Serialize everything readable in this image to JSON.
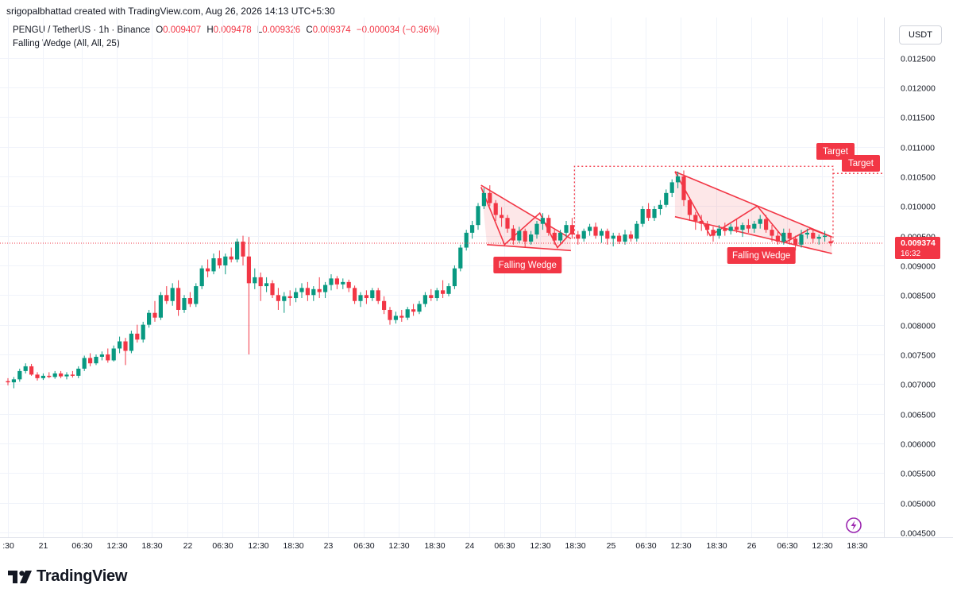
{
  "header": {
    "credit": "srigopalbhattad created with TradingView.com, Aug 26, 2026 14:13 UTC+5:30",
    "symbol": "PENGU / TetherUS · 1h · Binance",
    "o_label": "O",
    "o_value": "0.009407",
    "h_label": "H",
    "h_value": "0.009478",
    "l_label": "L",
    "l_value": "0.009326",
    "c_label": "C",
    "c_value": "0.009374",
    "change": "−0.000034 (−0.36%)",
    "study": "Falling Wedge (All, All, 25)",
    "currency": "USDT"
  },
  "brand": {
    "name": "TradingView",
    "logo_icon": "tradingview-logo-icon"
  },
  "colors": {
    "up": "#089981",
    "down": "#f23645",
    "grid": "#f0f3fa",
    "pattern": "#f23645",
    "pattern_fill": "rgba(242,54,69,0.12)"
  },
  "chart_data": {
    "type": "candlestick",
    "title": "PENGU / TetherUS · 1h · Binance",
    "ylim": [
      0.00442,
      0.01307
    ],
    "y_ticks": [
      "0.012500",
      "0.012000",
      "0.011500",
      "0.011000",
      "0.010500",
      "0.010000",
      "0.009500",
      "0.009000",
      "0.008500",
      "0.008000",
      "0.007500",
      "0.007000",
      "0.006500",
      "0.006000",
      "0.005500",
      "0.005000",
      "0.004500"
    ],
    "x_ticks": [
      ":30",
      "21",
      "06:30",
      "12:30",
      "18:30",
      "22",
      "06:30",
      "12:30",
      "18:30",
      "23",
      "06:30",
      "12:30",
      "18:30",
      "24",
      "06:30",
      "12:30",
      "18:30",
      "25",
      "06:30",
      "12:30",
      "18:30",
      "26",
      "06:30",
      "12:30",
      "18:30"
    ],
    "x_tick_bars": [
      0,
      6,
      12.5,
      18.5,
      24.5,
      30.5,
      36.5,
      42.5,
      48.5,
      54.5,
      60.5,
      66.5,
      72.5,
      78.5,
      84.5,
      90.5,
      96.5,
      102.5,
      108.5,
      114.5,
      120.5,
      126.5,
      132.5,
      138.5,
      144.5
    ],
    "bars": [
      0,
      1,
      2,
      3,
      4,
      5,
      6,
      7,
      8,
      9,
      10,
      11,
      12,
      13,
      14,
      15,
      16,
      17,
      18,
      19,
      20,
      21,
      22,
      23,
      24,
      25,
      26,
      27,
      28,
      29,
      30,
      31,
      32,
      33,
      34,
      35,
      36,
      37,
      38,
      39,
      40,
      41,
      42,
      43,
      44,
      45,
      46,
      47,
      48,
      49,
      50,
      51,
      52,
      53,
      54,
      55,
      56,
      57,
      58,
      59,
      60,
      61,
      62,
      63,
      64,
      65,
      66,
      67,
      68,
      69,
      70,
      71,
      72,
      73,
      74,
      75,
      76,
      77,
      78,
      79,
      80,
      81,
      82,
      83,
      84,
      85,
      86,
      87,
      88,
      89,
      90,
      91,
      92,
      93,
      94,
      95,
      96,
      97,
      98,
      99,
      100,
      101,
      102,
      103,
      104,
      105,
      106,
      107,
      108,
      109,
      110,
      111,
      112,
      113,
      114,
      115,
      116,
      117,
      118,
      119,
      120,
      121,
      122,
      123,
      124,
      125,
      126,
      127,
      128,
      129,
      130,
      131,
      132,
      133,
      134,
      135,
      136,
      137,
      138,
      139,
      140
    ],
    "candles": [
      [
        0.00705,
        0.0071,
        0.00698,
        0.00703
      ],
      [
        0.00703,
        0.00712,
        0.00693,
        0.00708
      ],
      [
        0.00708,
        0.00726,
        0.00704,
        0.00722
      ],
      [
        0.00722,
        0.00735,
        0.00718,
        0.0073
      ],
      [
        0.0073,
        0.00734,
        0.00714,
        0.00716
      ],
      [
        0.00716,
        0.0072,
        0.00706,
        0.0071
      ],
      [
        0.0071,
        0.00718,
        0.00707,
        0.00714
      ],
      [
        0.00714,
        0.0072,
        0.0071,
        0.00712
      ],
      [
        0.00712,
        0.00722,
        0.00709,
        0.00718
      ],
      [
        0.00718,
        0.00722,
        0.0071,
        0.00713
      ],
      [
        0.00713,
        0.0072,
        0.00708,
        0.00716
      ],
      [
        0.00716,
        0.00722,
        0.00711,
        0.00714
      ],
      [
        0.00714,
        0.0073,
        0.0071,
        0.00726
      ],
      [
        0.00726,
        0.00748,
        0.00722,
        0.00744
      ],
      [
        0.00744,
        0.00752,
        0.0073,
        0.00735
      ],
      [
        0.00735,
        0.0075,
        0.00732,
        0.00746
      ],
      [
        0.00746,
        0.00755,
        0.0074,
        0.0075
      ],
      [
        0.0075,
        0.0076,
        0.00736,
        0.0074
      ],
      [
        0.0074,
        0.00765,
        0.00738,
        0.0076
      ],
      [
        0.0076,
        0.0078,
        0.00752,
        0.00772
      ],
      [
        0.00772,
        0.00778,
        0.00732,
        0.00756
      ],
      [
        0.00756,
        0.0079,
        0.00752,
        0.00785
      ],
      [
        0.00785,
        0.008,
        0.0077,
        0.00775
      ],
      [
        0.00775,
        0.00805,
        0.0077,
        0.008
      ],
      [
        0.008,
        0.00825,
        0.00795,
        0.0082
      ],
      [
        0.0082,
        0.0084,
        0.00805,
        0.00812
      ],
      [
        0.00812,
        0.00855,
        0.00808,
        0.0085
      ],
      [
        0.0085,
        0.00865,
        0.00835,
        0.0084
      ],
      [
        0.0084,
        0.0087,
        0.00832,
        0.00862
      ],
      [
        0.00862,
        0.00875,
        0.00815,
        0.00825
      ],
      [
        0.00825,
        0.0085,
        0.0082,
        0.00845
      ],
      [
        0.00845,
        0.00855,
        0.0083,
        0.00835
      ],
      [
        0.00835,
        0.0087,
        0.0083,
        0.00865
      ],
      [
        0.00865,
        0.009,
        0.0086,
        0.00895
      ],
      [
        0.00895,
        0.0091,
        0.0088,
        0.0089
      ],
      [
        0.0089,
        0.0092,
        0.00885,
        0.00912
      ],
      [
        0.00912,
        0.00925,
        0.00895,
        0.009
      ],
      [
        0.009,
        0.0092,
        0.00885,
        0.00915
      ],
      [
        0.00915,
        0.0093,
        0.00905,
        0.0091
      ],
      [
        0.0091,
        0.00945,
        0.00905,
        0.0094
      ],
      [
        0.0094,
        0.0095,
        0.009,
        0.00915
      ],
      [
        0.00915,
        0.00948,
        0.0075,
        0.0087
      ],
      [
        0.0087,
        0.00895,
        0.0086,
        0.0088
      ],
      [
        0.0088,
        0.00888,
        0.0084,
        0.00865
      ],
      [
        0.00865,
        0.0088,
        0.00855,
        0.0087
      ],
      [
        0.0087,
        0.00875,
        0.00845,
        0.0085
      ],
      [
        0.0085,
        0.00862,
        0.00825,
        0.0084
      ],
      [
        0.0084,
        0.00855,
        0.0082,
        0.00848
      ],
      [
        0.00848,
        0.00858,
        0.00832,
        0.00845
      ],
      [
        0.00845,
        0.00862,
        0.00838,
        0.00855
      ],
      [
        0.00855,
        0.0087,
        0.00845,
        0.00862
      ],
      [
        0.00862,
        0.00872,
        0.0084,
        0.0085
      ],
      [
        0.0085,
        0.00865,
        0.0084,
        0.0086
      ],
      [
        0.0086,
        0.0088,
        0.00845,
        0.00855
      ],
      [
        0.00855,
        0.00872,
        0.00845,
        0.00867
      ],
      [
        0.00867,
        0.00885,
        0.00858,
        0.00878
      ],
      [
        0.00878,
        0.00882,
        0.0086,
        0.00868
      ],
      [
        0.00868,
        0.00878,
        0.0086,
        0.00872
      ],
      [
        0.00872,
        0.00876,
        0.00855,
        0.00862
      ],
      [
        0.00862,
        0.00866,
        0.00835,
        0.0084
      ],
      [
        0.0084,
        0.00855,
        0.0083,
        0.0085
      ],
      [
        0.0085,
        0.00858,
        0.00835,
        0.00845
      ],
      [
        0.00845,
        0.00862,
        0.0084,
        0.00858
      ],
      [
        0.00858,
        0.00862,
        0.00835,
        0.0084
      ],
      [
        0.0084,
        0.00848,
        0.00818,
        0.00825
      ],
      [
        0.00825,
        0.0083,
        0.008,
        0.00808
      ],
      [
        0.00808,
        0.00822,
        0.00802,
        0.00815
      ],
      [
        0.00815,
        0.00825,
        0.00805,
        0.00812
      ],
      [
        0.00812,
        0.0083,
        0.00808,
        0.00826
      ],
      [
        0.00826,
        0.00835,
        0.00815,
        0.00822
      ],
      [
        0.00822,
        0.0084,
        0.00818,
        0.00835
      ],
      [
        0.00835,
        0.00855,
        0.0083,
        0.0085
      ],
      [
        0.0085,
        0.0086,
        0.0084,
        0.00845
      ],
      [
        0.00845,
        0.00862,
        0.0084,
        0.00858
      ],
      [
        0.00858,
        0.00875,
        0.00845,
        0.00852
      ],
      [
        0.00852,
        0.0087,
        0.00848,
        0.00865
      ],
      [
        0.00865,
        0.009,
        0.0086,
        0.00895
      ],
      [
        0.00895,
        0.00935,
        0.0089,
        0.0093
      ],
      [
        0.0093,
        0.0096,
        0.00925,
        0.00955
      ],
      [
        0.00955,
        0.00975,
        0.00945,
        0.00968
      ],
      [
        0.00968,
        0.01005,
        0.0096,
        0.01
      ],
      [
        0.01,
        0.0103,
        0.00995,
        0.01022
      ],
      [
        0.01022,
        0.01035,
        0.01,
        0.01005
      ],
      [
        0.01005,
        0.0101,
        0.00975,
        0.00985
      ],
      [
        0.00985,
        0.00998,
        0.00965,
        0.0098
      ],
      [
        0.0098,
        0.00985,
        0.00955,
        0.00962
      ],
      [
        0.00962,
        0.00968,
        0.00935,
        0.00942
      ],
      [
        0.00942,
        0.00965,
        0.00938,
        0.00958
      ],
      [
        0.00958,
        0.00962,
        0.0093,
        0.0094
      ],
      [
        0.0094,
        0.00958,
        0.00935,
        0.00952
      ],
      [
        0.00952,
        0.00975,
        0.00945,
        0.0097
      ],
      [
        0.0097,
        0.00988,
        0.0096,
        0.0098
      ],
      [
        0.0098,
        0.00985,
        0.0095,
        0.00955
      ],
      [
        0.00955,
        0.0096,
        0.00935,
        0.00942
      ],
      [
        0.00942,
        0.0096,
        0.00938,
        0.00955
      ],
      [
        0.00955,
        0.00975,
        0.00948,
        0.00968
      ],
      [
        0.00968,
        0.0098,
        0.00945,
        0.00952
      ],
      [
        0.00952,
        0.00958,
        0.00935,
        0.00945
      ],
      [
        0.00945,
        0.00962,
        0.0094,
        0.00958
      ],
      [
        0.00958,
        0.0097,
        0.0095,
        0.00965
      ],
      [
        0.00965,
        0.00972,
        0.00945,
        0.0095
      ],
      [
        0.0095,
        0.00962,
        0.00938,
        0.00958
      ],
      [
        0.00958,
        0.00962,
        0.00935,
        0.00945
      ],
      [
        0.00945,
        0.00955,
        0.00932,
        0.0095
      ],
      [
        0.0095,
        0.00955,
        0.00936,
        0.0094
      ],
      [
        0.0094,
        0.0096,
        0.00935,
        0.00952
      ],
      [
        0.00952,
        0.00958,
        0.0094,
        0.00945
      ],
      [
        0.00945,
        0.00975,
        0.0094,
        0.0097
      ],
      [
        0.0097,
        0.01,
        0.00965,
        0.00995
      ],
      [
        0.00995,
        0.01005,
        0.00975,
        0.0098
      ],
      [
        0.0098,
        0.01,
        0.00975,
        0.00995
      ],
      [
        0.00995,
        0.0101,
        0.00985,
        0.01002
      ],
      [
        0.01002,
        0.01028,
        0.00998,
        0.01022
      ],
      [
        0.01022,
        0.01045,
        0.01015,
        0.0104
      ],
      [
        0.0104,
        0.01058,
        0.0103,
        0.0105
      ],
      [
        0.0105,
        0.0106,
        0.01,
        0.0101
      ],
      [
        0.0101,
        0.01015,
        0.00975,
        0.00985
      ],
      [
        0.00985,
        0.0099,
        0.0096,
        0.00975
      ],
      [
        0.00975,
        0.00985,
        0.00958,
        0.0097
      ],
      [
        0.0097,
        0.00975,
        0.0095,
        0.0096
      ],
      [
        0.0096,
        0.00965,
        0.0094,
        0.0095
      ],
      [
        0.0095,
        0.00968,
        0.00945,
        0.00962
      ],
      [
        0.00962,
        0.00972,
        0.0095,
        0.00958
      ],
      [
        0.00958,
        0.0097,
        0.00952,
        0.00965
      ],
      [
        0.00965,
        0.00978,
        0.00955,
        0.0096
      ],
      [
        0.0096,
        0.00972,
        0.00948,
        0.00968
      ],
      [
        0.00968,
        0.00978,
        0.00955,
        0.00962
      ],
      [
        0.00962,
        0.00975,
        0.00955,
        0.0097
      ],
      [
        0.0097,
        0.00985,
        0.00962,
        0.00978
      ],
      [
        0.00978,
        0.00985,
        0.00955,
        0.0096
      ],
      [
        0.0096,
        0.00968,
        0.0094,
        0.0095
      ],
      [
        0.0095,
        0.00958,
        0.00935,
        0.0094
      ],
      [
        0.0094,
        0.00962,
        0.00935,
        0.00955
      ],
      [
        0.00955,
        0.00962,
        0.00935,
        0.00945
      ],
      [
        0.00945,
        0.0095,
        0.00925,
        0.00935
      ],
      [
        0.00935,
        0.0096,
        0.0093,
        0.00952
      ],
      [
        0.00952,
        0.00962,
        0.00945,
        0.00955
      ],
      [
        0.00955,
        0.00962,
        0.00938,
        0.00945
      ],
      [
        0.00945,
        0.00952,
        0.00935,
        0.00948
      ],
      [
        0.00948,
        0.00958,
        0.0094,
        0.0095
      ],
      [
        0.009407,
        0.009478,
        0.009326,
        0.009374
      ]
    ],
    "last_price": "0.009374",
    "last_price_value": 0.009374,
    "countdown": "16:32",
    "patterns": [
      {
        "name": "Falling Wedge",
        "upper": [
          [
            80.5,
            0.01035
          ],
          [
            95.8,
            0.00945
          ]
        ],
        "lower": [
          [
            81.5,
            0.00935
          ],
          [
            95.8,
            0.00925
          ]
        ],
        "zigzag": [
          [
            80.5,
            0.01032
          ],
          [
            84.5,
            0.00935
          ],
          [
            90.5,
            0.00988
          ],
          [
            93.5,
            0.0093
          ],
          [
            95.8,
            0.00955
          ]
        ]
      },
      {
        "name": "Falling Wedge",
        "upper": [
          [
            113.5,
            0.01058
          ],
          [
            140.2,
            0.00948
          ]
        ],
        "lower": [
          [
            113.5,
            0.00982
          ],
          [
            140.2,
            0.0092
          ]
        ],
        "zigzag": [
          [
            113.5,
            0.01058
          ],
          [
            119.5,
            0.0095
          ],
          [
            127.5,
            0.01
          ],
          [
            132.5,
            0.0094
          ],
          [
            136.5,
            0.00962
          ],
          [
            140.2,
            0.00948
          ]
        ]
      }
    ],
    "target_label": "Target",
    "target_level": 0.01067,
    "target_box_from_bar": 96.4,
    "target_box_to_bar": 140.4
  }
}
